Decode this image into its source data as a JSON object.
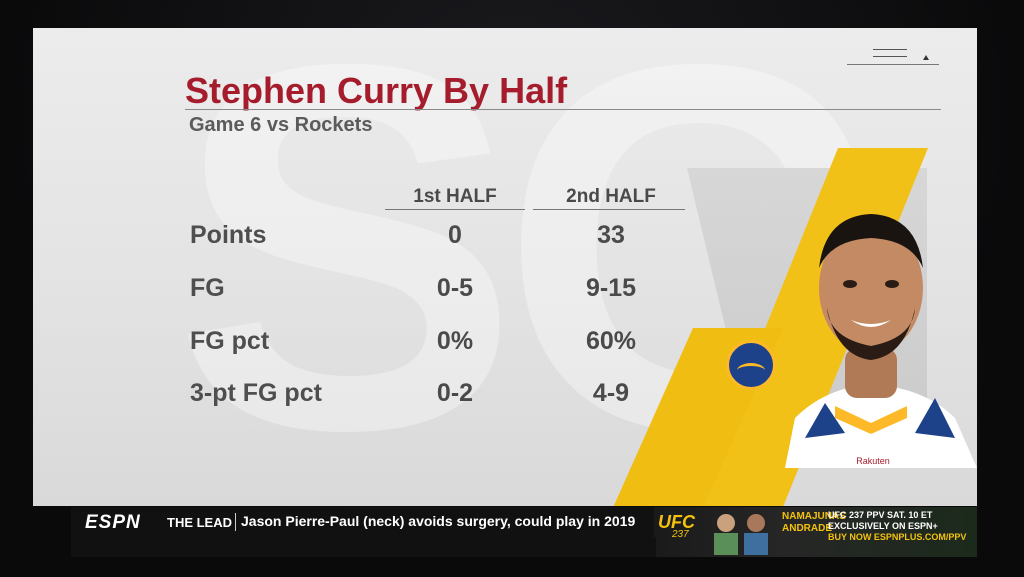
{
  "graphic": {
    "title": "Stephen Curry By Half",
    "subtitle": "Game 6 vs Rockets",
    "columns": [
      "1st HALF",
      "2nd HALF"
    ],
    "rows": [
      {
        "label": "Points",
        "first": "0",
        "second": "33"
      },
      {
        "label": "FG",
        "first": "0-5",
        "second": "9-15"
      },
      {
        "label": "FG pct",
        "first": "0%",
        "second": "60%"
      },
      {
        "label": "3-pt FG pct",
        "first": "0-2",
        "second": "4-9"
      }
    ],
    "jersey_text": "Rakuten",
    "team_logo_icon": "warriors-logo-icon",
    "colors": {
      "title": "#a51d2d",
      "accent_gold": "#f2c118",
      "team_blue": "#1d428a"
    }
  },
  "ticker": {
    "network": "ESPN",
    "segment": "THE LEAD",
    "headline": "Jason Pierre-Paul (neck) avoids surgery, could play in 2019"
  },
  "ad": {
    "brand": "UFC",
    "number": "237",
    "names_1": "NAMAJUNAS",
    "names_2": "ANDRADE",
    "line_1": "UFC 237 PPV SAT. 10 ET",
    "line_2": "EXCLUSIVELY ON ESPN+",
    "line_3": "BUY NOW ESPNPLUS.COM/PPV"
  }
}
